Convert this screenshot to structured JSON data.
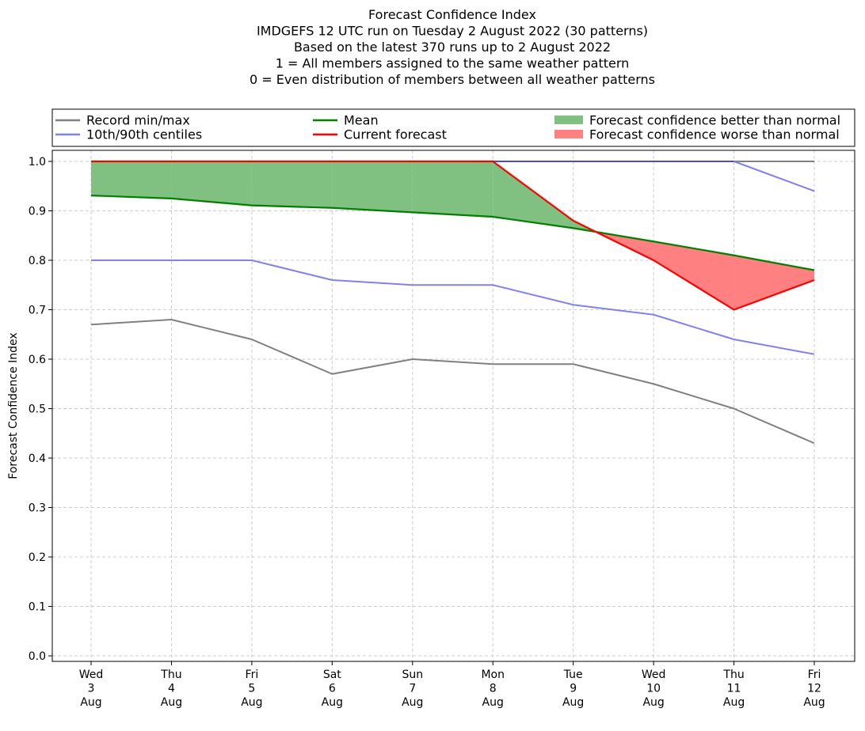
{
  "chart_data": {
    "type": "line",
    "title_lines": [
      "Forecast Confidence Index",
      "IMDGEFS 12 UTC run on Tuesday 2 August 2022 (30 patterns)",
      "Based on the latest 370 runs up to 2 August 2022",
      "1 = All members assigned to the same weather pattern",
      "0 = Even distribution of members between all weather patterns"
    ],
    "ylabel": "Forecast Confidence Index",
    "ylim": [
      0,
      1.0
    ],
    "yticks": [
      "0.0",
      "0.1",
      "0.2",
      "0.3",
      "0.4",
      "0.5",
      "0.6",
      "0.7",
      "0.8",
      "0.9",
      "1.0"
    ],
    "grid": true,
    "legend_placement": "top, above plot",
    "categories": [
      [
        "Wed",
        "3",
        "Aug"
      ],
      [
        "Thu",
        "4",
        "Aug"
      ],
      [
        "Fri",
        "5",
        "Aug"
      ],
      [
        "Sat",
        "6",
        "Aug"
      ],
      [
        "Sun",
        "7",
        "Aug"
      ],
      [
        "Mon",
        "8",
        "Aug"
      ],
      [
        "Tue",
        "9",
        "Aug"
      ],
      [
        "Wed",
        "10",
        "Aug"
      ],
      [
        "Thu",
        "11",
        "Aug"
      ],
      [
        "Fri",
        "12",
        "Aug"
      ]
    ],
    "record_min": [
      0.67,
      0.68,
      0.64,
      0.57,
      0.6,
      0.59,
      0.59,
      0.55,
      0.5,
      0.43
    ],
    "record_max": [
      1.0,
      1.0,
      1.0,
      1.0,
      1.0,
      1.0,
      1.0,
      1.0,
      1.0,
      1.0
    ],
    "p10": [
      0.8,
      0.8,
      0.8,
      0.76,
      0.75,
      0.75,
      0.71,
      0.69,
      0.64,
      0.61
    ],
    "p90": [
      1.0,
      1.0,
      1.0,
      1.0,
      1.0,
      1.0,
      1.0,
      1.0,
      1.0,
      0.94
    ],
    "mean": [
      0.931,
      0.925,
      0.911,
      0.906,
      0.897,
      0.888,
      0.865,
      0.838,
      0.81,
      0.78
    ],
    "current": [
      1.0,
      1.0,
      1.0,
      1.0,
      1.0,
      1.0,
      0.88,
      0.8,
      0.7,
      0.76
    ],
    "legend": [
      {
        "label": "Record min/max",
        "kind": "line",
        "color": "#808080"
      },
      {
        "label": "10th/90th centiles",
        "kind": "line",
        "color": "#8080f0"
      },
      {
        "label": "Mean",
        "kind": "line",
        "color": "#008000"
      },
      {
        "label": "Current forecast",
        "kind": "line",
        "color": "#ff0000"
      },
      {
        "label": "Forecast confidence better than normal",
        "kind": "patch",
        "color": "#80c080"
      },
      {
        "label": "Forecast confidence worse than normal",
        "kind": "patch",
        "color": "#ff8080"
      }
    ]
  }
}
